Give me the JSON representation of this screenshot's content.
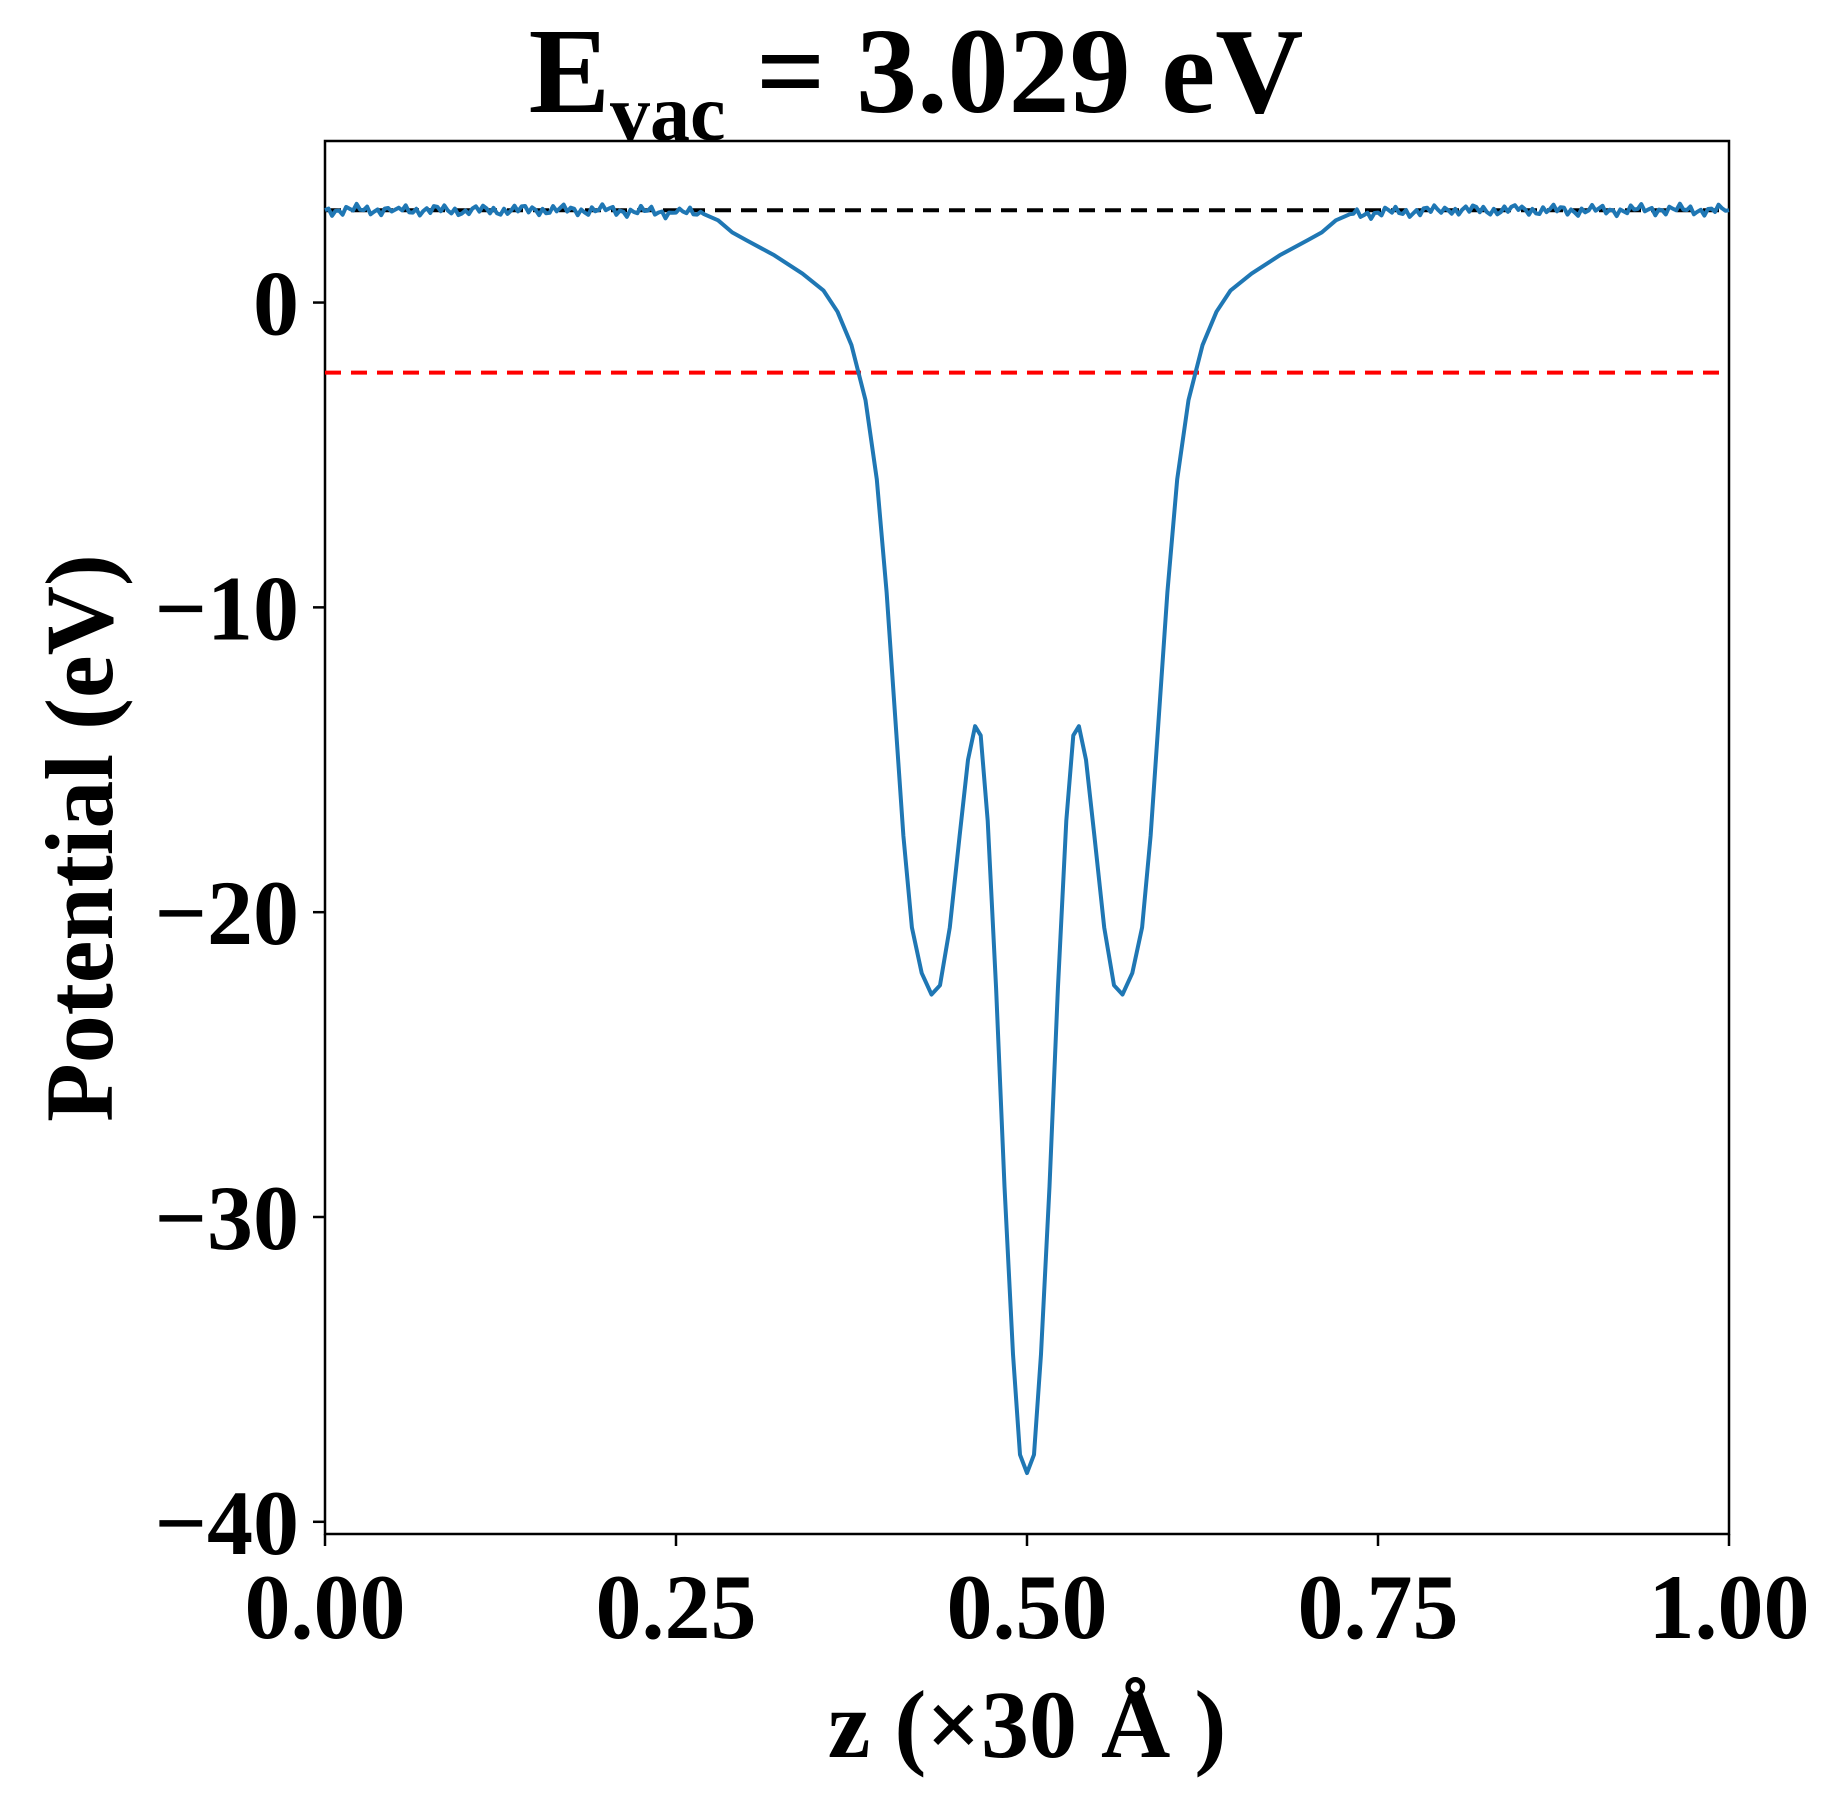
{
  "chart_data": {
    "type": "line",
    "title": {
      "main": "E",
      "subscript": "vac",
      "rest": " = 3.029 eV"
    },
    "xlabel": "z (×30 Å )",
    "ylabel": "Potential (eV)",
    "xlim": [
      0,
      1
    ],
    "ylim": [
      -40.4,
      5.3
    ],
    "x_ticks": [
      {
        "value": 0.0,
        "label": "0.00"
      },
      {
        "value": 0.25,
        "label": "0.25"
      },
      {
        "value": 0.5,
        "label": "0.50"
      },
      {
        "value": 0.75,
        "label": "0.75"
      },
      {
        "value": 1.0,
        "label": "1.00"
      }
    ],
    "y_ticks": [
      {
        "value": 0,
        "label": "0"
      },
      {
        "value": -10,
        "label": "−10"
      },
      {
        "value": -20,
        "label": "−20"
      },
      {
        "value": -30,
        "label": "−30"
      },
      {
        "value": -40,
        "label": "−40"
      }
    ],
    "grid": false,
    "reference_lines": [
      {
        "y": 3.029,
        "color": "#000000",
        "style": "dashed"
      },
      {
        "y": -2.3,
        "color": "#ff0000",
        "style": "dashed"
      }
    ],
    "series": [
      {
        "color": "#1f77b4",
        "points": [
          [
            0.0,
            3.03
          ],
          [
            0.05,
            3.05
          ],
          [
            0.1,
            3.02
          ],
          [
            0.15,
            3.04
          ],
          [
            0.2,
            3.03
          ],
          [
            0.25,
            2.95
          ],
          [
            0.27,
            2.9
          ],
          [
            0.28,
            2.7
          ],
          [
            0.29,
            2.3
          ],
          [
            0.3,
            2.05
          ],
          [
            0.32,
            1.55
          ],
          [
            0.34,
            0.95
          ],
          [
            0.355,
            0.4
          ],
          [
            0.365,
            -0.3
          ],
          [
            0.375,
            -1.4
          ],
          [
            0.385,
            -3.2
          ],
          [
            0.393,
            -5.8
          ],
          [
            0.4,
            -9.5
          ],
          [
            0.406,
            -13.5
          ],
          [
            0.412,
            -17.5
          ],
          [
            0.418,
            -20.5
          ],
          [
            0.425,
            -22.0
          ],
          [
            0.432,
            -22.7
          ],
          [
            0.438,
            -22.4
          ],
          [
            0.445,
            -20.5
          ],
          [
            0.452,
            -17.5
          ],
          [
            0.458,
            -15.0
          ],
          [
            0.463,
            -13.9
          ],
          [
            0.467,
            -14.2
          ],
          [
            0.472,
            -17.0
          ],
          [
            0.478,
            -22.5
          ],
          [
            0.484,
            -29.0
          ],
          [
            0.49,
            -34.5
          ],
          [
            0.495,
            -37.8
          ],
          [
            0.5,
            -38.4
          ],
          [
            0.505,
            -37.8
          ],
          [
            0.51,
            -34.5
          ],
          [
            0.516,
            -29.0
          ],
          [
            0.522,
            -22.5
          ],
          [
            0.528,
            -17.0
          ],
          [
            0.533,
            -14.2
          ],
          [
            0.537,
            -13.9
          ],
          [
            0.542,
            -15.0
          ],
          [
            0.548,
            -17.5
          ],
          [
            0.555,
            -20.5
          ],
          [
            0.562,
            -22.4
          ],
          [
            0.568,
            -22.7
          ],
          [
            0.575,
            -22.0
          ],
          [
            0.582,
            -20.5
          ],
          [
            0.588,
            -17.5
          ],
          [
            0.594,
            -13.5
          ],
          [
            0.6,
            -9.5
          ],
          [
            0.607,
            -5.8
          ],
          [
            0.615,
            -3.2
          ],
          [
            0.625,
            -1.4
          ],
          [
            0.635,
            -0.3
          ],
          [
            0.645,
            0.4
          ],
          [
            0.66,
            0.95
          ],
          [
            0.68,
            1.55
          ],
          [
            0.7,
            2.05
          ],
          [
            0.71,
            2.3
          ],
          [
            0.72,
            2.7
          ],
          [
            0.73,
            2.9
          ],
          [
            0.75,
            2.95
          ],
          [
            0.8,
            3.03
          ],
          [
            0.85,
            3.04
          ],
          [
            0.9,
            3.02
          ],
          [
            0.95,
            3.05
          ],
          [
            1.0,
            3.03
          ]
        ]
      }
    ]
  }
}
